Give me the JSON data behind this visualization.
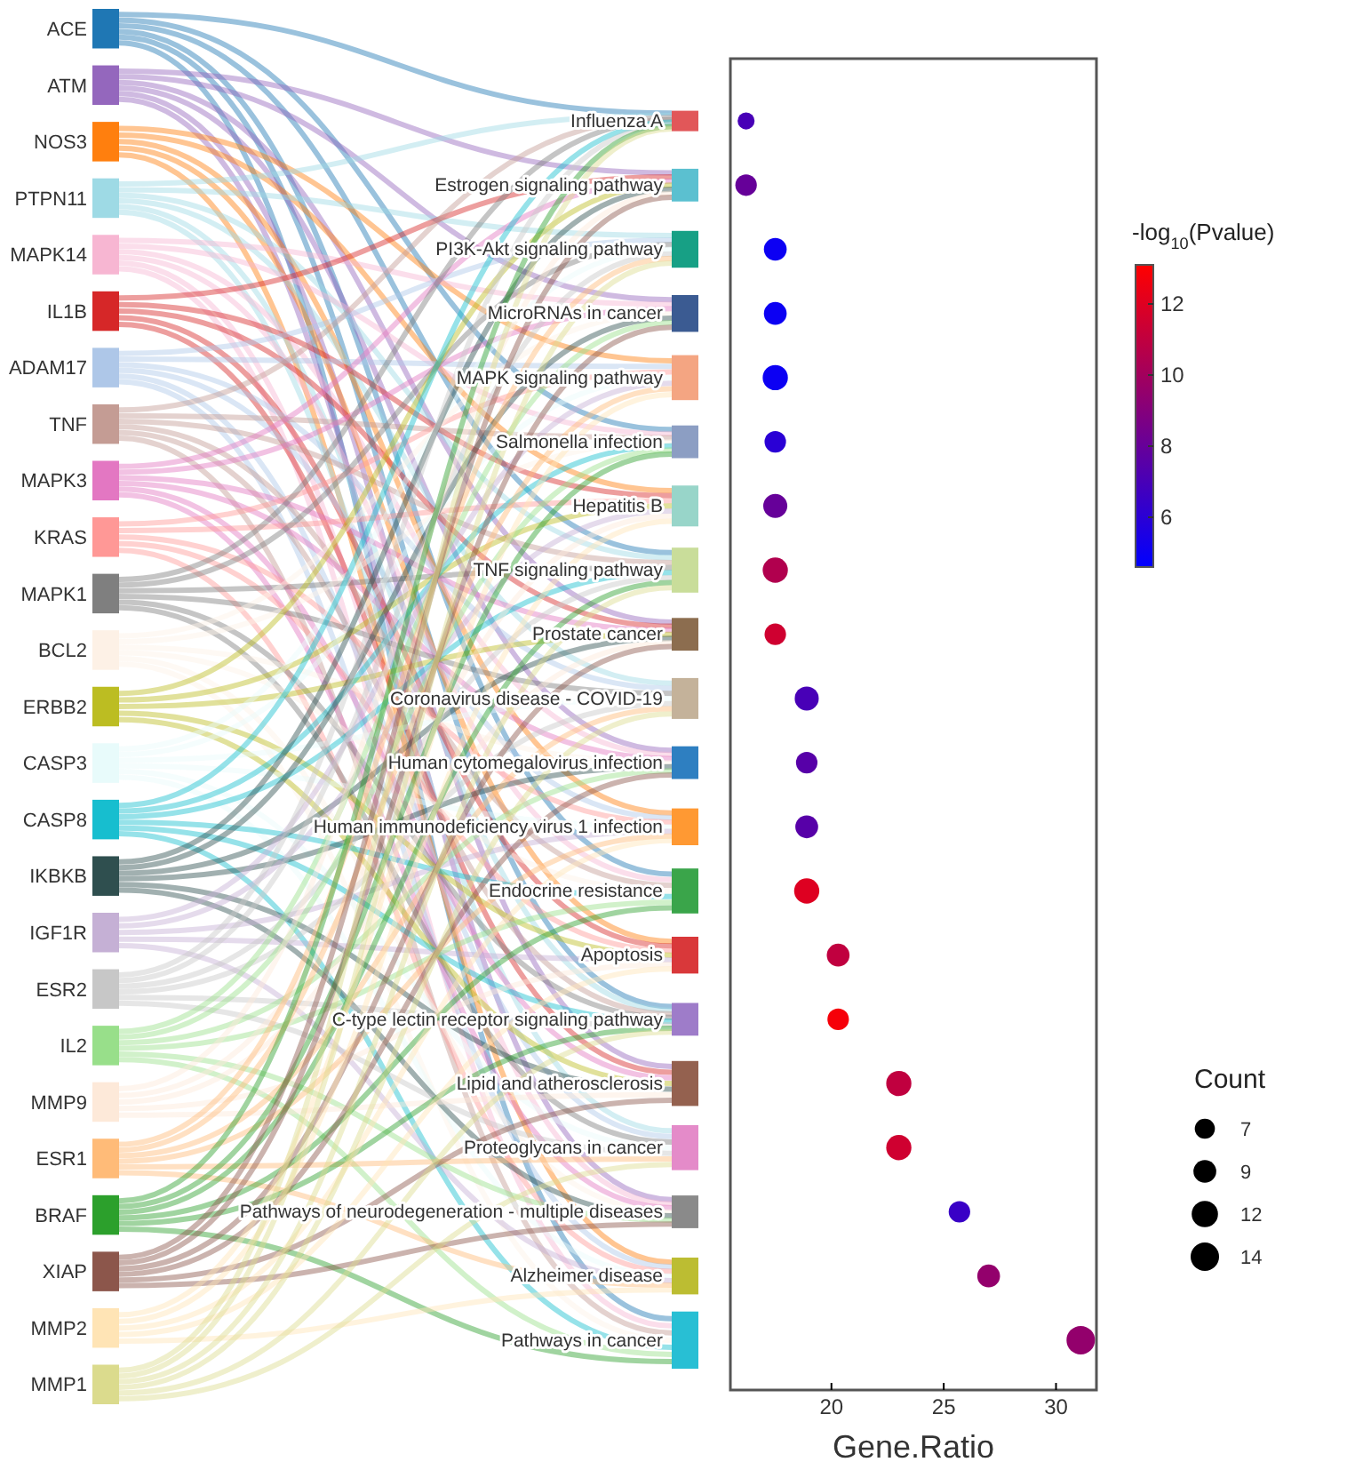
{
  "chart_data": [
    {
      "type": "other",
      "categories": [
        "ACE",
        "ATM",
        "NOS3",
        "PTPN11",
        "MAPK14",
        "IL1B",
        "ADAM17",
        "TNF",
        "MAPK3",
        "KRAS",
        "MAPK1",
        "BCL2",
        "ERBB2",
        "CASP3",
        "CASP8",
        "IKBKB",
        "IGF1R",
        "ESR2",
        "IL2",
        "MMP9",
        "ESR1",
        "BRAF",
        "XIAP",
        "MMP2",
        "MMP1"
      ],
      "colors": [
        "#1f77b4",
        "#9467bd",
        "#ff7f0e",
        "#9edae5",
        "#f7b6d2",
        "#d62728",
        "#aec7e8",
        "#c49c94",
        "#e377c2",
        "#ff9896",
        "#7f7f7f",
        "#fdf1e6",
        "#bcbd22",
        "#e8fbfb",
        "#17becf",
        "#2f4f4f",
        "#c5b0d5",
        "#c7c7c7",
        "#98df8a",
        "#fde9d9",
        "#ffbb78",
        "#2ca02c",
        "#8c564b",
        "#ffe4b5",
        "#dbdb8d"
      ]
    },
    {
      "type": "bubble",
      "orientation": "horizontal",
      "categories": [
        "Influenza A",
        "Estrogen signaling pathway",
        "PI3K-Akt signaling pathway",
        "MicroRNAs in cancer",
        "MAPK signaling pathway",
        "Salmonella infection",
        "Hepatitis B",
        "TNF signaling pathway",
        "Prostate cancer",
        "Coronavirus disease - COVID-19",
        "Human cytomegalovirus infection",
        "Human immunodeficiency virus 1 infection",
        "Endocrine resistance",
        "Apoptosis",
        "C-type lectin receptor signaling pathway",
        "Lipid and atherosclerosis",
        "Proteoglycans in cancer",
        "Pathways of neurodegeneration - multiple diseases",
        "Alzheimer disease",
        "Pathways in cancer"
      ],
      "values": [
        16.2,
        16.2,
        17.5,
        17.5,
        17.5,
        17.5,
        17.5,
        17.5,
        17.5,
        18.9,
        18.9,
        18.9,
        18.9,
        20.3,
        20.3,
        23.0,
        23.0,
        25.7,
        27.0,
        31.1
      ],
      "sizes": [
        5,
        8,
        9,
        9,
        11,
        8,
        10,
        11,
        8,
        10,
        8,
        9,
        11,
        9,
        8,
        11,
        11,
        8,
        9,
        14
      ],
      "size_legend": [
        7,
        9,
        12,
        14
      ],
      "legend_title": "Count",
      "cvalues": [
        7,
        8,
        5,
        5,
        5,
        6,
        8,
        10.5,
        11.5,
        7,
        7.5,
        7.5,
        12,
        11,
        12.8,
        11,
        11.5,
        6.5,
        9.5,
        9.5
      ],
      "clim": [
        4.6,
        13.1
      ],
      "cticks": [
        6,
        8,
        10,
        12
      ],
      "clabel": "-log$_{10}$(Pvalue)",
      "xlabel": "Gene.Ratio",
      "xlim": [
        15.5,
        31.8
      ],
      "xticks": [
        20,
        25,
        30
      ]
    }
  ]
}
